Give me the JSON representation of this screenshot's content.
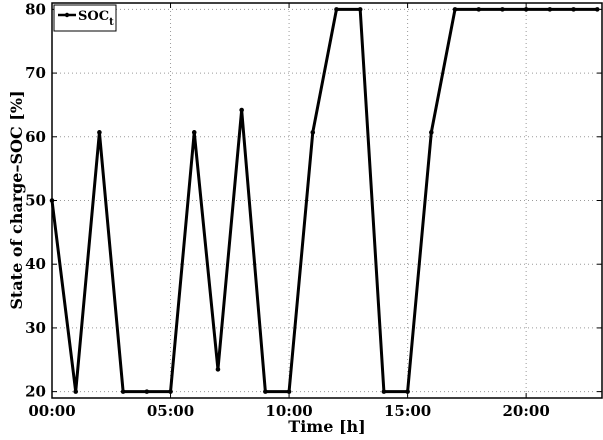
{
  "chart_data": {
    "type": "line",
    "xlabel": "Time [h]",
    "ylabel": "State of charge–SOC [%]",
    "xlim": [
      0,
      23.2
    ],
    "ylim": [
      19,
      81
    ],
    "x_tick_values": [
      0,
      5,
      10,
      15,
      20
    ],
    "x_tick_labels": [
      "00:00",
      "05:00",
      "10:00",
      "15:00",
      "20:00"
    ],
    "y_ticks": [
      20,
      30,
      40,
      50,
      60,
      70,
      80
    ],
    "grid": true,
    "legend_position": "top-left",
    "legend": {
      "main": "SOC",
      "sub": "t"
    },
    "series": [
      {
        "name": "SOC_t",
        "color": "#000000",
        "marker": "dot",
        "x": [
          0,
          1,
          2,
          3,
          4,
          5,
          6,
          7,
          8,
          9,
          10,
          11,
          12,
          13,
          14,
          15,
          16,
          17,
          18,
          19,
          20,
          21,
          22,
          23
        ],
        "y": [
          50,
          20,
          60.7,
          20,
          20,
          20,
          60.7,
          23.5,
          64.2,
          20,
          20,
          60.7,
          80,
          80,
          20,
          20,
          60.7,
          80,
          80,
          80,
          80,
          80,
          80,
          80
        ]
      }
    ]
  }
}
